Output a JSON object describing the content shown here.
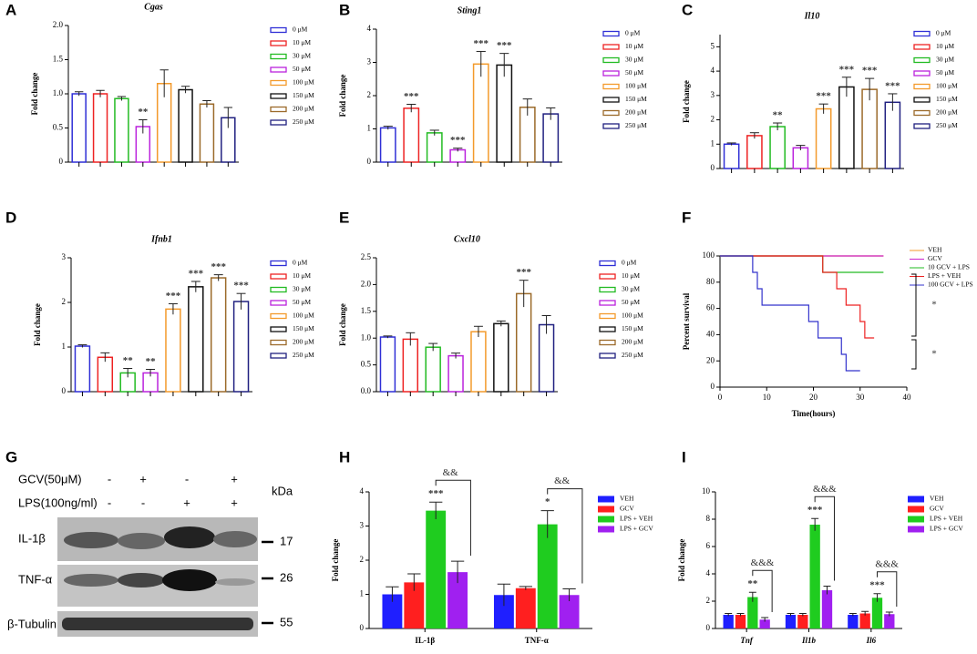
{
  "chart_data": [
    {
      "type": "bar",
      "label": "A",
      "title": "Cgas",
      "ylabel": "Fold change",
      "categories": [
        "0 μM",
        "10 μM",
        "30 μM",
        "50 μM",
        "100 μM",
        "150 μM",
        "200 μM",
        "250 μM"
      ],
      "colors": [
        "#2f2fd6",
        "#ee2222",
        "#22bb22",
        "#bb22dd",
        "#f39a2b",
        "#111111",
        "#9b6a2a",
        "#202080"
      ],
      "values": [
        1.0,
        1.0,
        0.93,
        0.52,
        1.15,
        1.06,
        0.85,
        0.65
      ],
      "errors": [
        0.03,
        0.05,
        0.03,
        0.1,
        0.2,
        0.05,
        0.05,
        0.15
      ],
      "significance": [
        null,
        null,
        null,
        "**",
        null,
        null,
        null,
        null
      ],
      "ylim": [
        0,
        2.0
      ],
      "yticks": [
        0.0,
        0.5,
        {
          "value": 1,
          "label": "1.0"
        },
        1.5,
        {
          "value": 2,
          "label": "2.0"
        }
      ]
    },
    {
      "type": "bar",
      "label": "B",
      "title": "Sting1",
      "ylabel": "Fold change",
      "categories": [
        "0 μM",
        "10 μM",
        "30 μM",
        "50 μM",
        "100 μM",
        "150 μM",
        "200 μM",
        "250 μM"
      ],
      "colors": [
        "#2f2fd6",
        "#ee2222",
        "#22bb22",
        "#bb22dd",
        "#f39a2b",
        "#111111",
        "#9b6a2a",
        "#202080"
      ],
      "values": [
        1.03,
        1.62,
        0.88,
        0.37,
        2.95,
        2.92,
        1.65,
        1.45
      ],
      "errors": [
        0.05,
        0.12,
        0.08,
        0.05,
        0.38,
        0.35,
        0.25,
        0.18
      ],
      "significance": [
        null,
        "***",
        null,
        "***",
        "***",
        "***",
        null,
        null
      ],
      "ylim": [
        0,
        4
      ],
      "yticks": [
        0,
        1,
        2,
        3,
        4
      ]
    },
    {
      "type": "bar",
      "label": "C",
      "title": "Il10",
      "ylabel": "Fold change",
      "categories": [
        "0 μM",
        "10 μM",
        "30 μM",
        "50 μM",
        "100 μM",
        "150 μM",
        "200 μM",
        "250 μM"
      ],
      "colors": [
        "#2f2fd6",
        "#ee2222",
        "#22bb22",
        "#bb22dd",
        "#f39a2b",
        "#111111",
        "#9b6a2a",
        "#202080"
      ],
      "values": [
        1.0,
        1.35,
        1.72,
        0.85,
        2.45,
        3.35,
        3.25,
        2.72
      ],
      "errors": [
        0.05,
        0.12,
        0.15,
        0.1,
        0.2,
        0.4,
        0.45,
        0.35
      ],
      "significance": [
        null,
        null,
        "**",
        null,
        "***",
        "***",
        "***",
        "***"
      ],
      "ylim": [
        0,
        5.5
      ],
      "yticks": [
        0,
        1,
        2,
        3,
        4,
        5
      ]
    },
    {
      "type": "bar",
      "label": "D",
      "title": "Ifnb1",
      "ylabel": "Fold change",
      "categories": [
        "0 μM",
        "10 μM",
        "30 μM",
        "50 μM",
        "100 μM",
        "150 μM",
        "200 μM",
        "250 μM"
      ],
      "colors": [
        "#2f2fd6",
        "#ee2222",
        "#22bb22",
        "#bb22dd",
        "#f39a2b",
        "#111111",
        "#9b6a2a",
        "#202080"
      ],
      "values": [
        1.02,
        0.77,
        0.42,
        0.42,
        1.85,
        2.35,
        2.55,
        2.02
      ],
      "errors": [
        0.03,
        0.1,
        0.1,
        0.08,
        0.12,
        0.12,
        0.07,
        0.18
      ],
      "significance": [
        null,
        null,
        "**",
        "**",
        "***",
        "***",
        "***",
        "***"
      ],
      "ylim": [
        0,
        3
      ],
      "yticks": [
        0,
        1,
        2,
        3
      ]
    },
    {
      "type": "bar",
      "label": "E",
      "title": "Cxcl10",
      "ylabel": "Fold change",
      "categories": [
        "0 μM",
        "10 μM",
        "30 μM",
        "50 μM",
        "100 μM",
        "150 μM",
        "200 μM",
        "250 μM"
      ],
      "colors": [
        "#2f2fd6",
        "#ee2222",
        "#22bb22",
        "#bb22dd",
        "#f39a2b",
        "#111111",
        "#9b6a2a",
        "#202080"
      ],
      "values": [
        1.02,
        0.98,
        0.83,
        0.67,
        1.12,
        1.27,
        1.83,
        1.25
      ],
      "errors": [
        0.02,
        0.12,
        0.07,
        0.05,
        0.1,
        0.05,
        0.25,
        0.17
      ],
      "significance": [
        null,
        null,
        null,
        null,
        null,
        null,
        "***",
        null
      ],
      "ylim": [
        0,
        2.5
      ],
      "yticks": [
        {
          "value": 0,
          "label": "0.0"
        },
        0.5,
        {
          "value": 1,
          "label": "1.0"
        },
        1.5,
        {
          "value": 2,
          "label": "2.0"
        },
        2.5
      ]
    },
    {
      "type": "line",
      "label": "F",
      "ylabel": "Percent survival",
      "xlabel": "Time(hours)",
      "series": [
        {
          "name": "VEH",
          "color": "#f39a2b",
          "x": [
            0,
            35
          ],
          "values": [
            100,
            100
          ]
        },
        {
          "name": "GCV",
          "color": "#cc22cc",
          "x": [
            0,
            35
          ],
          "values": [
            100,
            100
          ]
        },
        {
          "name": "10 GCV + LPS",
          "color": "#22bb22",
          "x": [
            0,
            22,
            35
          ],
          "values": [
            100,
            87.5,
            87.5
          ]
        },
        {
          "name": "LPS + VEH",
          "color": "#ee2222",
          "x": [
            0,
            22,
            25,
            27,
            30,
            31,
            33
          ],
          "values": [
            100,
            87.5,
            75,
            62.5,
            50,
            37.5,
            37.5
          ]
        },
        {
          "name": "100 GCV + LPS",
          "color": "#3333cc",
          "x": [
            0,
            7,
            8,
            9,
            19,
            21,
            26,
            27,
            30
          ],
          "values": [
            100,
            87.5,
            75,
            62.5,
            50,
            37.5,
            25,
            12.5,
            12.5
          ]
        }
      ],
      "annotations": [
        "*",
        "*"
      ],
      "xlim": [
        0,
        40
      ],
      "xticks": [
        0,
        10,
        20,
        30,
        40
      ],
      "ylim": [
        0,
        100
      ],
      "yticks": [
        0,
        20,
        40,
        60,
        80,
        100
      ]
    },
    {
      "type": "bar",
      "label": "H",
      "ylabel": "Fold change",
      "categories": [
        "IL-1β",
        "TNF-α"
      ],
      "series": [
        {
          "name": "VEH",
          "color": "#1f1fff",
          "values": [
            1.0,
            0.98
          ],
          "errors": [
            0.22,
            0.32
          ]
        },
        {
          "name": "GCV",
          "color": "#ff1f1f",
          "values": [
            1.35,
            1.18
          ],
          "errors": [
            0.25,
            0.05
          ]
        },
        {
          "name": "LPS + VEH",
          "color": "#1fcc1f",
          "values": [
            3.45,
            3.05
          ],
          "errors": [
            0.25,
            0.4
          ],
          "significance": [
            "***",
            "*"
          ]
        },
        {
          "name": "LPS + GCV",
          "color": "#a020f0",
          "values": [
            1.65,
            0.98
          ],
          "errors": [
            0.32,
            0.18
          ]
        }
      ],
      "comparisons": [
        "&&",
        "&&"
      ],
      "ylim": [
        0,
        4
      ],
      "yticks": [
        0,
        1,
        2,
        3,
        4
      ]
    },
    {
      "type": "bar",
      "label": "I",
      "ylabel": "Fold change",
      "categories": [
        "Tnf",
        "Il1b",
        "Il6"
      ],
      "series": [
        {
          "name": "VEH",
          "color": "#1f1fff",
          "values": [
            1.0,
            1.0,
            1.0
          ],
          "errors": [
            0.1,
            0.1,
            0.1
          ]
        },
        {
          "name": "GCV",
          "color": "#ff1f1f",
          "values": [
            1.0,
            1.0,
            1.1
          ],
          "errors": [
            0.1,
            0.1,
            0.15
          ]
        },
        {
          "name": "LPS + VEH",
          "color": "#1fcc1f",
          "values": [
            2.3,
            7.6,
            2.25
          ],
          "errors": [
            0.35,
            0.45,
            0.3
          ],
          "significance": [
            "**",
            "***",
            "***"
          ]
        },
        {
          "name": "LPS + GCV",
          "color": "#a020f0",
          "values": [
            0.65,
            2.8,
            1.05
          ],
          "errors": [
            0.15,
            0.3,
            0.15
          ]
        }
      ],
      "comparisons": [
        "&&&",
        "&&&",
        "&&&"
      ],
      "ylim": [
        0,
        10
      ],
      "yticks": [
        0,
        2,
        4,
        6,
        8,
        10
      ]
    }
  ],
  "blot": {
    "label": "G",
    "rows": [
      {
        "label": "GCV(50μM)",
        "signs": [
          "-",
          "+",
          "-",
          "+"
        ]
      },
      {
        "label": "LPS(100ng/ml)",
        "signs": [
          "-",
          "-",
          "+",
          "+"
        ]
      }
    ],
    "kda_label": "kDa",
    "bands": [
      {
        "label": "IL-1β",
        "kda": "17"
      },
      {
        "label": "TNF-α",
        "kda": "26"
      },
      {
        "label": "β-Tubulin",
        "kda": "55"
      }
    ]
  }
}
